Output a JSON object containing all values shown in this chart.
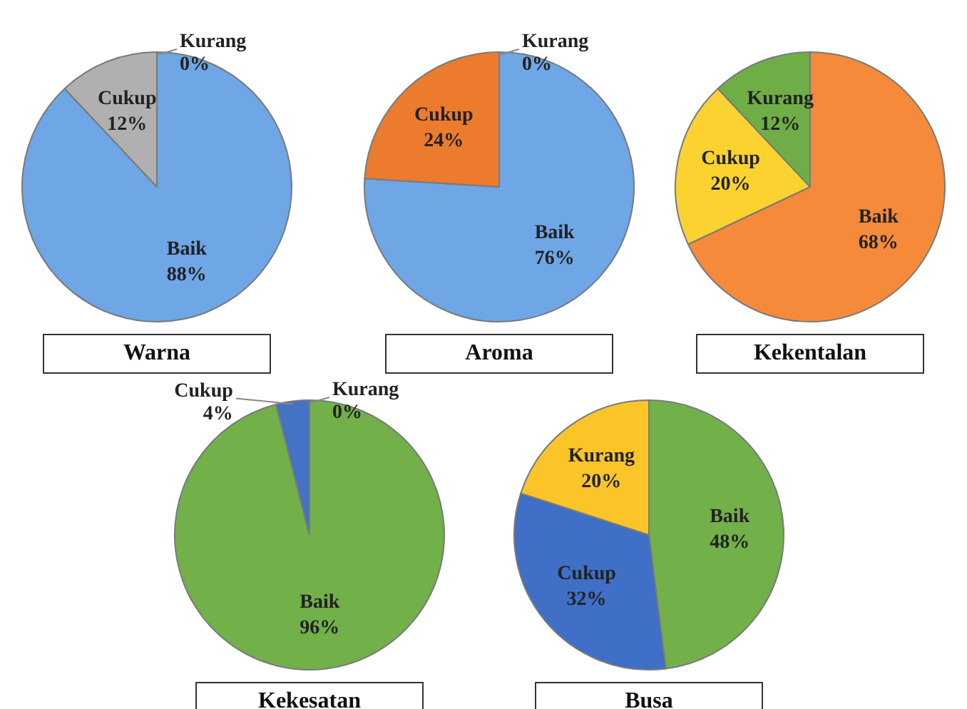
{
  "chart_data": [
    {
      "type": "pie",
      "title": "Warna",
      "categories": [
        "Baik",
        "Cukup",
        "Kurang"
      ],
      "values": [
        88,
        12,
        0
      ],
      "colors": [
        "#6ea6e6",
        "#b0b0b0",
        "#8c8c8c"
      ],
      "value_labels": [
        "88%",
        "12%",
        "0%"
      ]
    },
    {
      "type": "pie",
      "title": "Aroma",
      "categories": [
        "Baik",
        "Cukup",
        "Kurang"
      ],
      "values": [
        76,
        24,
        0
      ],
      "colors": [
        "#6ea6e6",
        "#ec7b2e",
        "#8c8c8c"
      ],
      "value_labels": [
        "76%",
        "24%",
        "0%"
      ]
    },
    {
      "type": "pie",
      "title": "Kekentalan",
      "categories": [
        "Baik",
        "Cukup",
        "Kurang"
      ],
      "values": [
        68,
        20,
        12
      ],
      "colors": [
        "#f58a3a",
        "#fbd230",
        "#6fae47"
      ],
      "value_labels": [
        "68%",
        "20%",
        "12%"
      ]
    },
    {
      "type": "pie",
      "title": "Kekesatan",
      "categories": [
        "Baik",
        "Cukup",
        "Kurang"
      ],
      "values": [
        96,
        4,
        0
      ],
      "colors": [
        "#72b04a",
        "#4472c4",
        "#8c8c8c"
      ],
      "value_labels": [
        "96%",
        "4%",
        "0%"
      ]
    },
    {
      "type": "pie",
      "title": "Busa",
      "categories": [
        "Baik",
        "Cukup",
        "Kurang"
      ],
      "values": [
        48,
        32,
        20
      ],
      "colors": [
        "#72b04a",
        "#3f6fc6",
        "#fbc52a"
      ],
      "value_labels": [
        "48%",
        "32%",
        "20%"
      ]
    }
  ]
}
